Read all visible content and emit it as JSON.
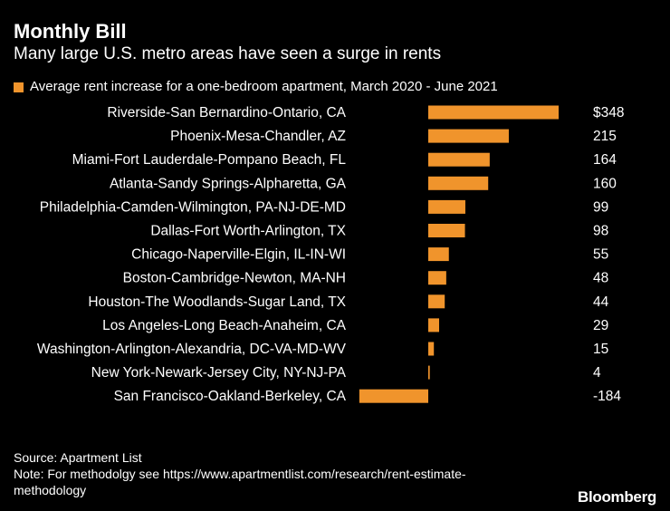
{
  "header": {
    "title": "Monthly Bill",
    "subtitle": "Many large U.S. metro areas have seen a surge in rents"
  },
  "chart_data": {
    "type": "bar",
    "orientation": "horizontal",
    "title": "Monthly Bill",
    "subtitle": "Many large U.S. metro areas have seen a surge in rents",
    "legend": [
      "Average rent increase for a one-bedroom apartment, March 2020 - June 2021"
    ],
    "legend_position": "top-left",
    "categories": [
      "Riverside-San Bernardino-Ontario, CA",
      "Phoenix-Mesa-Chandler, AZ",
      "Miami-Fort Lauderdale-Pompano Beach, FL",
      "Atlanta-Sandy Springs-Alpharetta, GA",
      "Philadelphia-Camden-Wilmington, PA-NJ-DE-MD",
      "Dallas-Fort Worth-Arlington, TX",
      "Chicago-Naperville-Elgin, IL-IN-WI",
      "Boston-Cambridge-Newton, MA-NH",
      "Houston-The Woodlands-Sugar Land, TX",
      "Los Angeles-Long Beach-Anaheim, CA",
      "Washington-Arlington-Alexandria, DC-VA-MD-WV",
      "New York-Newark-Jersey City, NY-NJ-PA",
      "San Francisco-Oakland-Berkeley, CA"
    ],
    "values": [
      348,
      215,
      164,
      160,
      99,
      98,
      55,
      48,
      44,
      29,
      15,
      4,
      -184
    ],
    "value_labels": [
      "$348",
      "215",
      "164",
      "160",
      "99",
      "98",
      "55",
      "48",
      "44",
      "29",
      "15",
      "4",
      "-184"
    ],
    "xlim": [
      -184,
      348
    ],
    "grid": false,
    "xlabel": "",
    "ylabel": ""
  },
  "colors": {
    "background": "#000000",
    "bar": "#f0942c",
    "text": "#ffffff"
  },
  "footer": {
    "source": "Source: Apartment List",
    "note": "Note: For methodolgy see https://www.apartmentlist.com/research/rent-estimate-methodology"
  },
  "brand": "Bloomberg"
}
